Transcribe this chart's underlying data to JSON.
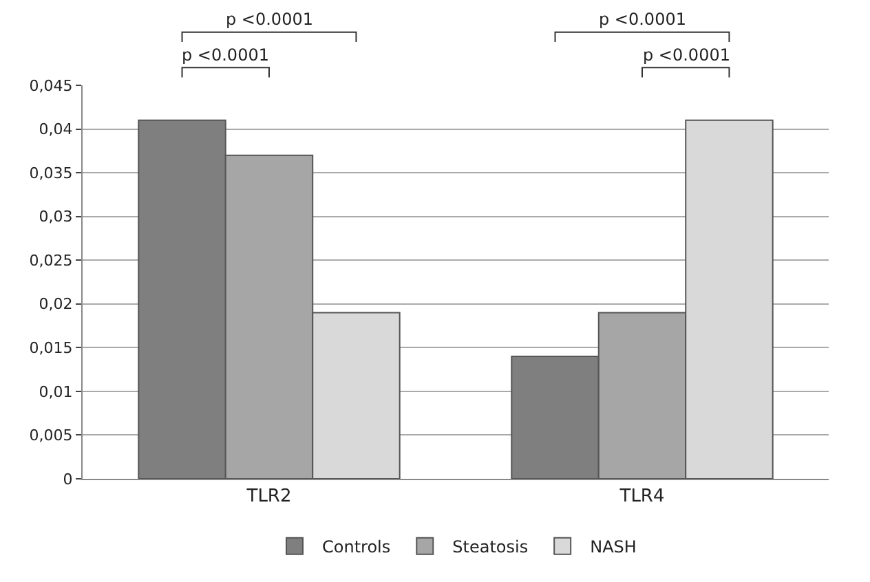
{
  "chart_data": {
    "type": "bar",
    "categories": [
      "TLR2",
      "TLR4"
    ],
    "series": [
      {
        "name": "Controls",
        "color": "#7f7f7f",
        "values": [
          0.041,
          0.014
        ]
      },
      {
        "name": "Steatosis",
        "color": "#a6a6a6",
        "values": [
          0.037,
          0.019
        ]
      },
      {
        "name": "NASH",
        "color": "#d9d9d9",
        "values": [
          0.019,
          0.041
        ]
      }
    ],
    "ylim": [
      0,
      0.045
    ],
    "yticks": [
      0,
      {
        "value": 0.005,
        "label": "0,005"
      },
      {
        "value": 0.01,
        "label": "0,01"
      },
      {
        "value": 0.015,
        "label": "0,015"
      },
      {
        "value": 0.02,
        "label": "0,02"
      },
      {
        "value": 0.025,
        "label": "0,025"
      },
      {
        "value": 0.03,
        "label": "0,03"
      },
      {
        "value": 0.035,
        "label": "0,035"
      },
      {
        "value": 0.04,
        "label": "0,04"
      },
      {
        "value": 0.045,
        "label": "0,045"
      }
    ],
    "grid": "y",
    "legend": "bottom",
    "annotations": [
      "p <0.0001",
      "p <0.0001",
      "p <0.0001",
      "p <0.0001"
    ]
  }
}
